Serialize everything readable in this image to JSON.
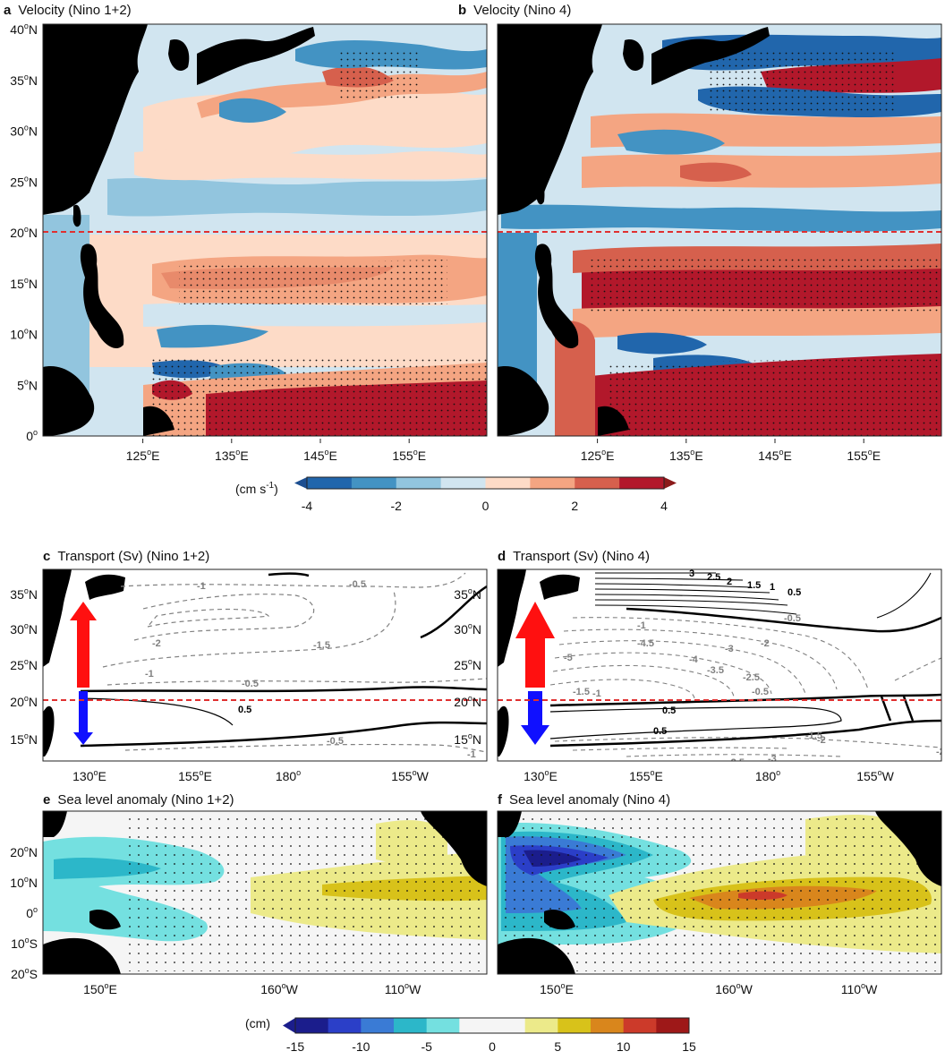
{
  "chart_data": [
    {
      "panel": "a",
      "type": "heatmap",
      "title": "Velocity (Nino 1+2)",
      "variable": "velocity anomaly",
      "units": "cm s-1",
      "x_ticks": [
        "125°E",
        "135°E",
        "145°E",
        "155°E"
      ],
      "y_ticks": [
        "0°",
        "5°N",
        "10°N",
        "15°N",
        "20°N",
        "25°N",
        "30°N",
        "35°N",
        "40°N"
      ],
      "reference_line": "20°N",
      "stippling": "significant regions"
    },
    {
      "panel": "b",
      "type": "heatmap",
      "title": "Velocity (Nino 4)",
      "variable": "velocity anomaly",
      "units": "cm s-1",
      "x_ticks": [
        "125°E",
        "135°E",
        "145°E",
        "155°E"
      ],
      "y_ticks": [
        "0°",
        "5°N",
        "10°N",
        "15°N",
        "20°N",
        "25°N",
        "30°N",
        "35°N",
        "40°N"
      ],
      "reference_line": "20°N",
      "stippling": "significant regions"
    },
    {
      "panel": "c",
      "type": "contour",
      "title": "Transport (Sv) (Nino 1+2)",
      "x_ticks": [
        "130°E",
        "155°E",
        "180°",
        "155°W"
      ],
      "y_ticks_left": [
        "15°N",
        "20°N",
        "25°N",
        "30°N",
        "35°N"
      ],
      "y_ticks_right": [
        "15°N",
        "20°N",
        "25°N",
        "30°N",
        "35°N"
      ],
      "contour_labels": [
        "-1",
        "-0.5",
        "-2",
        "-1.5",
        "-1",
        "-0.5",
        "0.5",
        "-0.5",
        "-1"
      ],
      "arrows": {
        "north": "red",
        "south": "blue"
      },
      "reference_line": "20°N"
    },
    {
      "panel": "d",
      "type": "contour",
      "title": "Transport (Sv) (Nino 4)",
      "x_ticks": [
        "130°E",
        "155°E",
        "180°",
        "155°W"
      ],
      "contour_labels": [
        "3",
        "2.5",
        "2",
        "1.5",
        "1",
        "0.5",
        "-1",
        "-0.5",
        "-5",
        "-4.5",
        "-4",
        "-3.5",
        "-3",
        "-2.5",
        "-2",
        "-1.5",
        "-1",
        "0.5",
        "0.5",
        "-0.5",
        "-1.5",
        "-2",
        "-2.5",
        "-3",
        "-2"
      ],
      "arrows": {
        "north": "red",
        "south": "blue"
      },
      "reference_line": "20°N"
    },
    {
      "panel": "e",
      "type": "heatmap",
      "title": "Sea level anomaly (Nino 1+2)",
      "units": "cm",
      "x_ticks": [
        "150°E",
        "160°W",
        "110°W"
      ],
      "y_ticks": [
        "20°S",
        "10°S",
        "0°",
        "10°N",
        "20°N"
      ]
    },
    {
      "panel": "f",
      "type": "heatmap",
      "title": "Sea level anomaly (Nino 4)",
      "units": "cm",
      "x_ticks": [
        "150°E",
        "160°W",
        "110°W"
      ],
      "y_ticks": [
        "20°S",
        "10°S",
        "0°",
        "10°N",
        "20°N"
      ]
    }
  ],
  "colorbars": {
    "velocity": {
      "label_main": "(cm s",
      "label_sup": "-1",
      "label_end": ")",
      "ticks": [
        "-4",
        "-2",
        "0",
        "2",
        "4"
      ],
      "colors": [
        "#2166ac",
        "#4393c3",
        "#92c5de",
        "#d1e5f0",
        "#fddbc7",
        "#f4a582",
        "#d6604d",
        "#b2182b"
      ],
      "extend_low": "#1d4f91",
      "extend_high": "#8b1a1a"
    },
    "sla": {
      "label": "(cm)",
      "ticks": [
        "-15",
        "-10",
        "-5",
        "0",
        "5",
        "10",
        "15"
      ],
      "colors": [
        "#1b1d8c",
        "#2b3fc8",
        "#3a7bd5",
        "#2cb7c9",
        "#74e0e0",
        "#f5f5f5",
        "#f5f5f5",
        "#ecea8a",
        "#d8c21a",
        "#d9861c",
        "#cc3a2a",
        "#9e1818"
      ]
    }
  },
  "palette": {
    "land": "#000000",
    "ref_line": "#e03030",
    "arrow_north": "#ff1010",
    "arrow_south": "#1010ff",
    "contour_pos": "#000000",
    "contour_neg": "#808080"
  },
  "labels": {
    "a": "a",
    "b": "b",
    "c": "c",
    "d": "d",
    "e": "e",
    "f": "f"
  }
}
